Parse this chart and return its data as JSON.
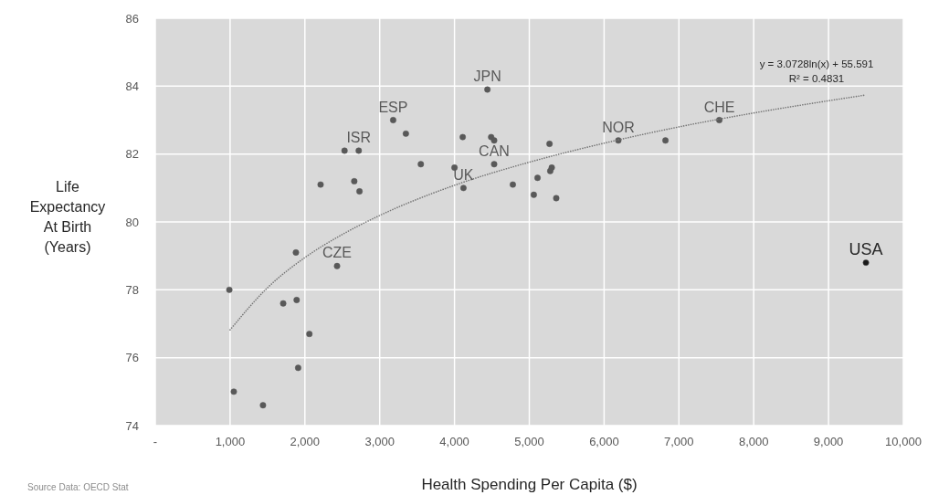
{
  "chart_data": {
    "type": "scatter",
    "xlabel": "Health Spending Per Capita ($)",
    "ylabel": "Life Expectancy At Birth (Years)",
    "xlim": [
      0,
      10000
    ],
    "ylim": [
      74,
      86
    ],
    "xticks": [
      {
        "value": 0,
        "label": "-"
      },
      {
        "value": 1000,
        "label": "1,000"
      },
      {
        "value": 2000,
        "label": "2,000"
      },
      {
        "value": 3000,
        "label": "3,000"
      },
      {
        "value": 4000,
        "label": "4,000"
      },
      {
        "value": 5000,
        "label": "5,000"
      },
      {
        "value": 6000,
        "label": "6,000"
      },
      {
        "value": 7000,
        "label": "7,000"
      },
      {
        "value": 8000,
        "label": "8,000"
      },
      {
        "value": 9000,
        "label": "9,000"
      },
      {
        "value": 10000,
        "label": "10,000"
      }
    ],
    "yticks": [
      74,
      76,
      78,
      80,
      82,
      84,
      86
    ],
    "grid": true,
    "series": [
      {
        "marker": "circle",
        "color": "#595959",
        "x": [
          990,
          1050,
          1440,
          1710,
          1890,
          1880,
          2060,
          1910,
          2210,
          2430,
          2530,
          2720,
          2660,
          2730,
          3180,
          3350,
          3550,
          4000,
          4110,
          4490,
          4530,
          4530,
          4120,
          4780,
          4440,
          5270,
          5110,
          5300,
          5280,
          5060,
          5360,
          6190,
          6820,
          7540,
          9500
        ],
        "values": [
          78.0,
          75.0,
          74.6,
          77.6,
          77.7,
          79.1,
          76.7,
          75.7,
          81.1,
          78.7,
          82.1,
          82.1,
          81.2,
          80.9,
          83.0,
          82.6,
          81.7,
          81.6,
          82.5,
          82.5,
          82.4,
          81.7,
          81.0,
          81.1,
          83.9,
          82.3,
          81.3,
          81.6,
          81.5,
          80.8,
          80.7,
          82.4,
          82.4,
          83.0,
          78.8
        ],
        "colors": [
          "#595959",
          "#595959",
          "#595959",
          "#595959",
          "#595959",
          "#595959",
          "#595959",
          "#595959",
          "#595959",
          "#595959",
          "#595959",
          "#595959",
          "#595959",
          "#595959",
          "#595959",
          "#595959",
          "#595959",
          "#595959",
          "#595959",
          "#595959",
          "#595959",
          "#595959",
          "#595959",
          "#595959",
          "#595959",
          "#595959",
          "#595959",
          "#595959",
          "#595959",
          "#595959",
          "#595959",
          "#595959",
          "#595959",
          "#595959",
          "#1a1a1a"
        ]
      },
      {
        "type": "line",
        "color": "#767676",
        "line_style": "dotted",
        "x": [
          1000,
          1500,
          2000,
          2500,
          3000,
          4000,
          5000,
          6000,
          7000,
          8000,
          9000,
          9500
        ],
        "values": [
          76.82,
          78.06,
          78.95,
          79.63,
          80.19,
          81.08,
          81.76,
          82.32,
          82.8,
          83.21,
          83.57,
          83.74
        ]
      }
    ],
    "annotations": [
      "y = 3.0728ln(x) + 55.591",
      "R² = 0.4831",
      "Source Data: OECD Stat",
      {
        "text": "CZE",
        "x": 2430,
        "y": 78.7
      },
      {
        "text": "ISR",
        "x": 2720,
        "y": 82.1
      },
      {
        "text": "ESP",
        "x": 3180,
        "y": 83.0
      },
      {
        "text": "JPN",
        "x": 4440,
        "y": 83.9
      },
      {
        "text": "CAN",
        "x": 4530,
        "y": 81.7
      },
      {
        "text": "UK",
        "x": 4120,
        "y": 81.0
      },
      {
        "text": "NOR",
        "x": 6190,
        "y": 82.4
      },
      {
        "text": "CHE",
        "x": 7540,
        "y": 83.0
      },
      {
        "text": "USA",
        "x": 9500,
        "y": 78.8
      }
    ]
  }
}
